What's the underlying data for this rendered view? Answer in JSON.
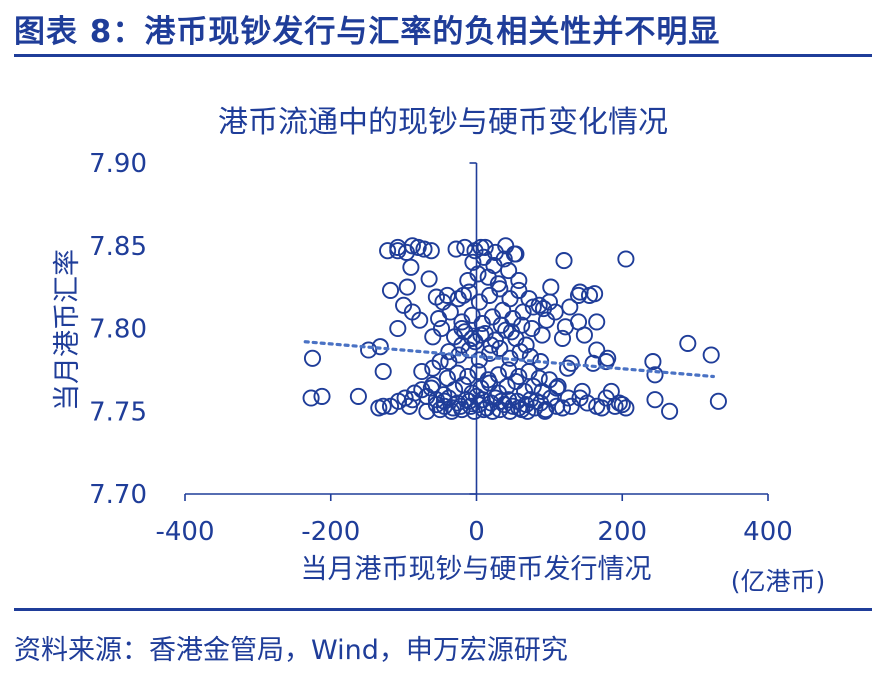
{
  "figure_title": "图表 8：港币现钞发行与汇率的负相关性并不明显",
  "source_note": "资料来源：香港金管局，Wind，申万宏源研究",
  "colors": {
    "primary": "#1F3D99",
    "trendline": "#4A72C4",
    "background": "#FFFFFF"
  },
  "chart_data": {
    "type": "scatter",
    "title": "港币流通中的现钞与硬币变化情况",
    "xlabel": "当月港币现钞与硬币发行情况",
    "xunit": "(亿港币)",
    "ylabel": "当月港币汇率",
    "xlim": [
      -400,
      400
    ],
    "ylim": [
      7.7,
      7.9
    ],
    "xticks": [
      "-400",
      "-200",
      "0",
      "200",
      "400"
    ],
    "yticks": [
      "7.70",
      "7.75",
      "7.80",
      "7.85",
      "7.90"
    ],
    "marker": "open-circle",
    "trendline": {
      "style": "dotted",
      "x": [
        -235,
        325
      ],
      "y": [
        7.792,
        7.771
      ]
    },
    "points": [
      [
        -227,
        7.758
      ],
      [
        -212,
        7.759
      ],
      [
        -225,
        7.782
      ],
      [
        -162,
        7.759
      ],
      [
        -128,
        7.753
      ],
      [
        -118,
        7.753
      ],
      [
        -107,
        7.756
      ],
      [
        -98,
        7.758
      ],
      [
        -92,
        7.753
      ],
      [
        -85,
        7.761
      ],
      [
        -75,
        7.763
      ],
      [
        -68,
        7.759
      ],
      [
        -62,
        7.764
      ],
      [
        -55,
        7.754
      ],
      [
        -50,
        7.751
      ],
      [
        -44,
        7.756
      ],
      [
        -38,
        7.758
      ],
      [
        -32,
        7.752
      ],
      [
        -26,
        7.755
      ],
      [
        -20,
        7.751
      ],
      [
        -14,
        7.757
      ],
      [
        -8,
        7.753
      ],
      [
        -3,
        7.75
      ],
      [
        3,
        7.754
      ],
      [
        8,
        7.757
      ],
      [
        14,
        7.752
      ],
      [
        20,
        7.755
      ],
      [
        26,
        7.758
      ],
      [
        32,
        7.751
      ],
      [
        38,
        7.754
      ],
      [
        44,
        7.757
      ],
      [
        50,
        7.753
      ],
      [
        56,
        7.756
      ],
      [
        62,
        7.751
      ],
      [
        68,
        7.754
      ],
      [
        74,
        7.757
      ],
      [
        80,
        7.752
      ],
      [
        88,
        7.755
      ],
      [
        95,
        7.751
      ],
      [
        102,
        7.758
      ],
      [
        110,
        7.753
      ],
      [
        118,
        7.752
      ],
      [
        130,
        7.753
      ],
      [
        142,
        7.758
      ],
      [
        152,
        7.755
      ],
      [
        165,
        7.753
      ],
      [
        178,
        7.758
      ],
      [
        190,
        7.753
      ],
      [
        196,
        7.755
      ],
      [
        205,
        7.752
      ],
      [
        -45,
        7.76
      ],
      [
        -30,
        7.763
      ],
      [
        -18,
        7.766
      ],
      [
        -6,
        7.761
      ],
      [
        6,
        7.764
      ],
      [
        18,
        7.767
      ],
      [
        30,
        7.761
      ],
      [
        42,
        7.765
      ],
      [
        54,
        7.768
      ],
      [
        66,
        7.762
      ],
      [
        78,
        7.765
      ],
      [
        90,
        7.762
      ],
      [
        -40,
        7.77
      ],
      [
        -26,
        7.773
      ],
      [
        -12,
        7.771
      ],
      [
        2,
        7.774
      ],
      [
        16,
        7.769
      ],
      [
        30,
        7.772
      ],
      [
        44,
        7.775
      ],
      [
        58,
        7.771
      ],
      [
        72,
        7.774
      ],
      [
        86,
        7.77
      ],
      [
        -60,
        7.766
      ],
      [
        -75,
        7.774
      ],
      [
        -88,
        7.757
      ],
      [
        100,
        7.769
      ],
      [
        110,
        7.764
      ],
      [
        125,
        7.776
      ],
      [
        145,
        7.762
      ],
      [
        160,
        7.779
      ],
      [
        185,
        7.762
      ],
      [
        165,
        7.787
      ],
      [
        180,
        7.782
      ],
      [
        242,
        7.78
      ],
      [
        245,
        7.772
      ],
      [
        245,
        7.757
      ],
      [
        265,
        7.75
      ],
      [
        290,
        7.791
      ],
      [
        322,
        7.784
      ],
      [
        332,
        7.756
      ],
      [
        -38,
        7.78
      ],
      [
        -24,
        7.784
      ],
      [
        -10,
        7.787
      ],
      [
        4,
        7.781
      ],
      [
        18,
        7.785
      ],
      [
        32,
        7.788
      ],
      [
        46,
        7.782
      ],
      [
        60,
        7.786
      ],
      [
        74,
        7.783
      ],
      [
        88,
        7.78
      ],
      [
        -30,
        7.795
      ],
      [
        -16,
        7.798
      ],
      [
        -2,
        7.792
      ],
      [
        12,
        7.797
      ],
      [
        26,
        7.793
      ],
      [
        40,
        7.799
      ],
      [
        54,
        7.794
      ],
      [
        68,
        7.79
      ],
      [
        -20,
        7.8
      ],
      [
        -60,
        7.795
      ],
      [
        -88,
        7.81
      ],
      [
        -78,
        7.805
      ],
      [
        -100,
        7.814
      ],
      [
        -95,
        7.825
      ],
      [
        -108,
        7.8
      ],
      [
        -132,
        7.789
      ],
      [
        -20,
        7.804
      ],
      [
        -6,
        7.808
      ],
      [
        8,
        7.803
      ],
      [
        22,
        7.807
      ],
      [
        36,
        7.811
      ],
      [
        50,
        7.806
      ],
      [
        64,
        7.81
      ],
      [
        78,
        7.813
      ],
      [
        92,
        7.812
      ],
      [
        108,
        7.81
      ],
      [
        122,
        7.801
      ],
      [
        118,
        7.794
      ],
      [
        -25,
        7.818
      ],
      [
        -10,
        7.822
      ],
      [
        4,
        7.816
      ],
      [
        18,
        7.82
      ],
      [
        32,
        7.824
      ],
      [
        46,
        7.818
      ],
      [
        58,
        7.823
      ],
      [
        72,
        7.818
      ],
      [
        86,
        7.814
      ],
      [
        100,
        7.816
      ],
      [
        -55,
        7.819
      ],
      [
        -40,
        7.82
      ],
      [
        -65,
        7.83
      ],
      [
        -12,
        7.829
      ],
      [
        2,
        7.833
      ],
      [
        16,
        7.831
      ],
      [
        30,
        7.827
      ],
      [
        44,
        7.835
      ],
      [
        58,
        7.829
      ],
      [
        -5,
        7.84
      ],
      [
        10,
        7.843
      ],
      [
        24,
        7.838
      ],
      [
        38,
        7.842
      ],
      [
        52,
        7.845
      ],
      [
        -28,
        7.848
      ],
      [
        -16,
        7.849
      ],
      [
        -2,
        7.847
      ],
      [
        12,
        7.849
      ],
      [
        26,
        7.846
      ],
      [
        40,
        7.85
      ],
      [
        54,
        7.845
      ],
      [
        -62,
        7.847
      ],
      [
        -72,
        7.848
      ],
      [
        -80,
        7.849
      ],
      [
        -88,
        7.85
      ],
      [
        -96,
        7.846
      ],
      [
        -108,
        7.847
      ],
      [
        -122,
        7.847
      ],
      [
        -90,
        7.837
      ],
      [
        -118,
        7.823
      ],
      [
        -46,
        7.816
      ],
      [
        -18,
        7.82
      ],
      [
        6,
        7.849
      ],
      [
        -108,
        7.849
      ],
      [
        120,
        7.841
      ],
      [
        140,
        7.82
      ],
      [
        155,
        7.82
      ],
      [
        165,
        7.804
      ],
      [
        162,
        7.821
      ],
      [
        205,
        7.842
      ],
      [
        178,
        7.78
      ],
      [
        200,
        7.754
      ],
      [
        172,
        7.752
      ],
      [
        102,
        7.825
      ],
      [
        96,
        7.805
      ],
      [
        128,
        7.813
      ],
      [
        142,
        7.822
      ],
      [
        140,
        7.804
      ],
      [
        148,
        7.796
      ],
      [
        130,
        7.779
      ],
      [
        112,
        7.765
      ],
      [
        126,
        7.758
      ],
      [
        -68,
        7.75
      ],
      [
        -55,
        7.757
      ],
      [
        -44,
        7.753
      ],
      [
        -34,
        7.75
      ],
      [
        -22,
        7.753
      ],
      [
        -10,
        7.756
      ],
      [
        0,
        7.759
      ],
      [
        10,
        7.751
      ],
      [
        22,
        7.75
      ],
      [
        34,
        7.756
      ],
      [
        46,
        7.75
      ],
      [
        58,
        7.752
      ],
      [
        70,
        7.75
      ],
      [
        82,
        7.756
      ],
      [
        94,
        7.75
      ],
      [
        -128,
        7.774
      ],
      [
        -148,
        7.787
      ],
      [
        -134,
        7.752
      ],
      [
        -50,
        7.78
      ],
      [
        -38,
        7.786
      ],
      [
        -60,
        7.776
      ],
      [
        -48,
        7.8
      ],
      [
        -52,
        7.806
      ],
      [
        -36,
        7.81
      ],
      [
        -20,
        7.79
      ],
      [
        -6,
        7.794
      ],
      [
        6,
        7.796
      ],
      [
        20,
        7.79
      ],
      [
        34,
        7.802
      ],
      [
        48,
        7.798
      ],
      [
        62,
        7.802
      ],
      [
        76,
        7.8
      ],
      [
        90,
        7.796
      ]
    ]
  }
}
